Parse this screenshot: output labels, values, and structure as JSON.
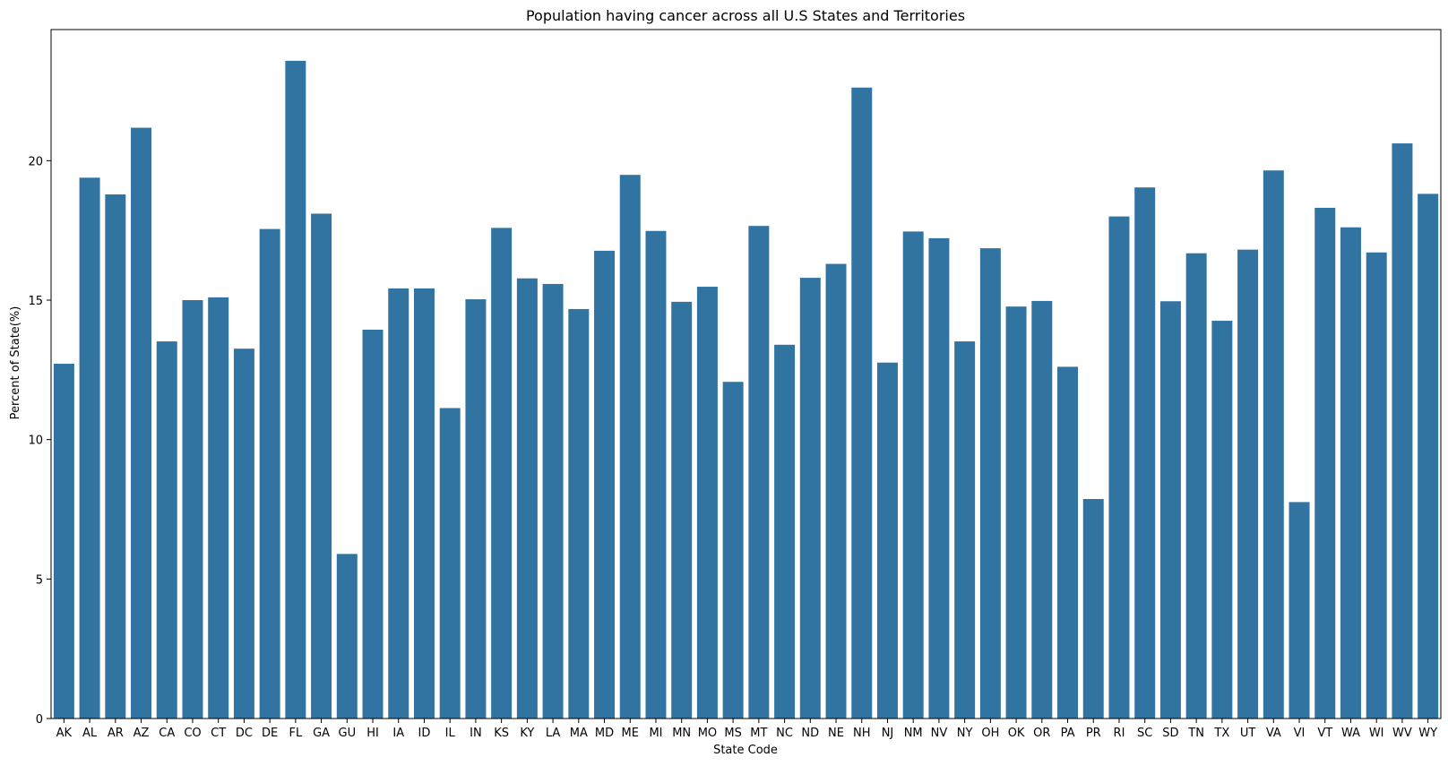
{
  "chart_data": {
    "type": "bar",
    "title": "Population having cancer across all U.S States and Territories",
    "xlabel": "State Code",
    "ylabel": "Percent of State(%)",
    "ylim": [
      0,
      24.7
    ],
    "yticks": [
      0,
      5,
      10,
      15,
      20
    ],
    "grid": false,
    "bar_color": "#3274a1",
    "categories": [
      "AK",
      "AL",
      "AR",
      "AZ",
      "CA",
      "CO",
      "CT",
      "DC",
      "DE",
      "FL",
      "GA",
      "GU",
      "HI",
      "IA",
      "ID",
      "IL",
      "IN",
      "KS",
      "KY",
      "LA",
      "MA",
      "MD",
      "ME",
      "MI",
      "MN",
      "MO",
      "MS",
      "MT",
      "NC",
      "ND",
      "NE",
      "NH",
      "NJ",
      "NM",
      "NV",
      "NY",
      "OH",
      "OK",
      "OR",
      "PA",
      "PR",
      "RI",
      "SC",
      "SD",
      "TN",
      "TX",
      "UT",
      "VA",
      "VI",
      "VT",
      "WA",
      "WI",
      "WV",
      "WY"
    ],
    "values": [
      12.72,
      19.39,
      18.79,
      21.18,
      13.52,
      15.0,
      15.1,
      13.26,
      17.55,
      23.58,
      18.1,
      5.9,
      13.94,
      15.42,
      15.42,
      11.13,
      15.03,
      17.59,
      15.78,
      15.58,
      14.68,
      16.77,
      19.49,
      17.48,
      14.94,
      15.48,
      12.07,
      17.66,
      13.4,
      15.8,
      16.3,
      22.62,
      12.76,
      17.46,
      17.22,
      13.52,
      16.86,
      14.77,
      14.97,
      12.61,
      7.87,
      18.0,
      19.04,
      14.96,
      16.68,
      14.26,
      16.81,
      19.65,
      7.76,
      18.31,
      17.61,
      16.71,
      20.62,
      18.81
    ]
  }
}
